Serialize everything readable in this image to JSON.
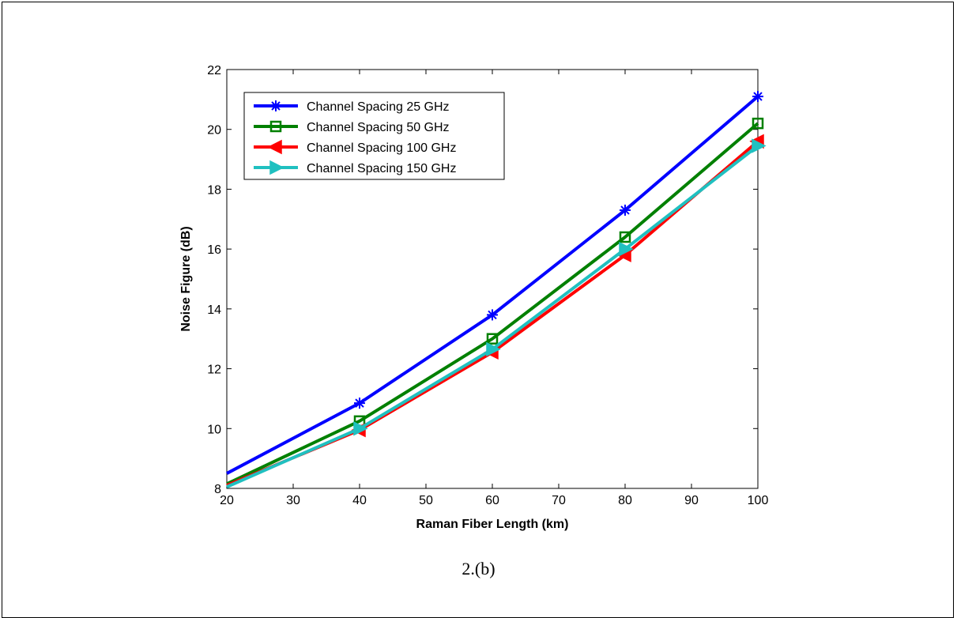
{
  "caption": "2.(b)",
  "chart_data": {
    "type": "line",
    "xlabel": "Raman Fiber Length (km)",
    "ylabel": "Noise Figure (dB)",
    "xlim": [
      20,
      100
    ],
    "ylim": [
      8,
      22
    ],
    "xticks": [
      20,
      30,
      40,
      50,
      60,
      70,
      80,
      90,
      100
    ],
    "yticks": [
      8,
      10,
      12,
      14,
      16,
      18,
      20,
      22
    ],
    "grid": false,
    "legend_position": "top-left",
    "x": [
      20,
      40,
      60,
      80,
      100
    ],
    "series": [
      {
        "name": "Channel Spacing 25 GHz",
        "color": "#0000ff",
        "marker": "star",
        "values": [
          8.5,
          10.85,
          13.8,
          17.3,
          21.1
        ]
      },
      {
        "name": "Channel Spacing 50 GHz",
        "color": "#008000",
        "marker": "square",
        "values": [
          8.15,
          10.25,
          13.0,
          16.4,
          20.2
        ]
      },
      {
        "name": "Channel Spacing 100 GHz",
        "color": "#ff0000",
        "marker": "triangle-left",
        "values": [
          8.1,
          9.95,
          12.55,
          15.8,
          19.6
        ]
      },
      {
        "name": "Channel Spacing 150 GHz",
        "color": "#20c0c0",
        "marker": "triangle-right",
        "values": [
          8.05,
          10.0,
          12.65,
          16.0,
          19.45
        ]
      }
    ]
  }
}
